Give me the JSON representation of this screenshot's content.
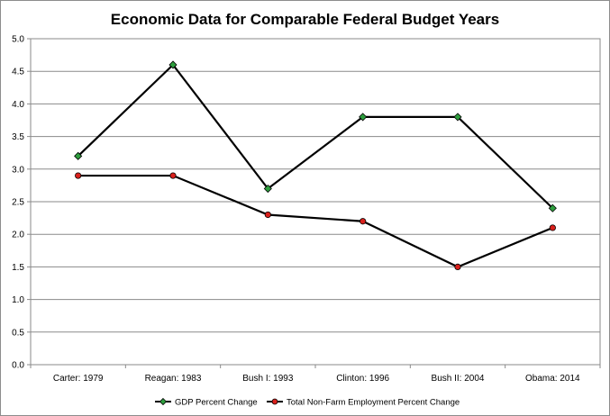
{
  "chart_data": {
    "type": "line",
    "title": "Economic Data for Comparable Federal Budget Years",
    "xlabel": "",
    "ylabel": "",
    "categories": [
      "Carter: 1979",
      "Reagan: 1983",
      "Bush I: 1993",
      "Clinton: 1996",
      "Bush II: 2004",
      "Obama: 2014"
    ],
    "ylim": [
      0,
      5
    ],
    "yticks": [
      "0.0",
      "0.5",
      "1.0",
      "1.5",
      "2.0",
      "2.5",
      "3.0",
      "3.5",
      "4.0",
      "4.5",
      "5.0"
    ],
    "grid": true,
    "legend_position": "bottom",
    "series": [
      {
        "name": "GDP Percent Change",
        "values": [
          3.2,
          4.6,
          2.7,
          3.8,
          3.8,
          2.4
        ],
        "marker": "diamond",
        "marker_color": "#2e9e3e",
        "line_color": "#000000"
      },
      {
        "name": "Total Non-Farm Employment Percent Change",
        "values": [
          2.9,
          2.9,
          2.3,
          2.2,
          1.5,
          2.1
        ],
        "marker": "circle",
        "marker_color": "#d9201c",
        "line_color": "#000000"
      }
    ]
  }
}
